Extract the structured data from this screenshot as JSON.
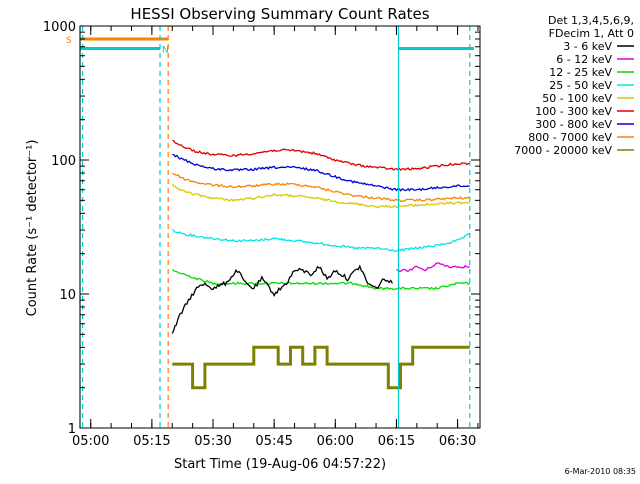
{
  "chart_data": {
    "type": "line",
    "title": "HESSI Observing Summary Count Rates",
    "xlabel": "Start Time (19-Aug-06 04:57:22)",
    "ylabel": "Count Rate (s⁻¹ detector⁻¹)",
    "xlim": [
      "04:57:22",
      "06:35:30"
    ],
    "ylim": [
      1,
      1000
    ],
    "yscale": "log",
    "x_ticks": [
      "05:00",
      "05:15",
      "05:30",
      "05:45",
      "06:00",
      "06:15",
      "06:30"
    ],
    "y_ticks": [
      "1",
      "10",
      "100",
      "1000"
    ],
    "grid": false,
    "legend_placement": "right",
    "legend_header": [
      "Det 1,3,4,5,6,9,",
      "FDecim 1, Att 0"
    ],
    "series": [
      {
        "name": "3 - 6 keV",
        "color": "#000000",
        "x": [
          "05:20",
          "05:21",
          "05:22",
          "05:24",
          "05:26",
          "05:28",
          "05:30",
          "05:33",
          "05:36",
          "05:38",
          "05:40",
          "05:42",
          "05:45",
          "05:48",
          "05:50",
          "05:52",
          "05:54",
          "05:56",
          "05:58",
          "06:00",
          "06:03",
          "06:06",
          "06:08",
          "06:10",
          "06:12",
          "06:14"
        ],
        "y": [
          5,
          6,
          7,
          9,
          11,
          12,
          11,
          12,
          15,
          12,
          11,
          13,
          10,
          12,
          15,
          15,
          14,
          16,
          13,
          15,
          13,
          16,
          12,
          11,
          13,
          12
        ]
      },
      {
        "name": "6 - 12 keV",
        "color": "#dd00dd",
        "x": [
          "06:15",
          "06:18",
          "06:20",
          "06:22",
          "06:25",
          "06:28",
          "06:30",
          "06:33"
        ],
        "y": [
          15,
          15,
          16,
          15,
          17,
          16,
          16,
          16
        ]
      },
      {
        "name": "12 - 25 keV",
        "color": "#00dd00",
        "x": [
          "05:20",
          "05:23",
          "05:26",
          "05:30",
          "05:35",
          "05:40",
          "05:45",
          "05:50",
          "05:55",
          "06:00",
          "06:05",
          "06:10",
          "06:15",
          "06:20",
          "06:25",
          "06:30",
          "06:33"
        ],
        "y": [
          15,
          14,
          13,
          12,
          12,
          12,
          12,
          12,
          12,
          12,
          12,
          11,
          11,
          11,
          11,
          12,
          12
        ]
      },
      {
        "name": "25 - 50 keV",
        "color": "#00e5e5",
        "x": [
          "05:20",
          "05:23",
          "05:26",
          "05:30",
          "05:35",
          "05:40",
          "05:45",
          "05:50",
          "05:55",
          "06:00",
          "06:05",
          "06:10",
          "06:15",
          "06:20",
          "06:25",
          "06:30",
          "06:33"
        ],
        "y": [
          30,
          28,
          27,
          26,
          25,
          25,
          26,
          25,
          24,
          23,
          22,
          22,
          21,
          22,
          23,
          25,
          28
        ]
      },
      {
        "name": "50 - 100 keV",
        "color": "#d8c800",
        "x": [
          "05:20",
          "05:23",
          "05:26",
          "05:30",
          "05:35",
          "05:40",
          "05:45",
          "05:50",
          "05:55",
          "06:00",
          "06:05",
          "06:10",
          "06:15",
          "06:20",
          "06:25",
          "06:30",
          "06:33"
        ],
        "y": [
          65,
          58,
          55,
          52,
          50,
          52,
          55,
          54,
          52,
          49,
          47,
          45,
          45,
          46,
          47,
          48,
          48
        ]
      },
      {
        "name": "100 - 300 keV",
        "color": "#dd0000",
        "x": [
          "05:20",
          "05:23",
          "05:26",
          "05:30",
          "05:35",
          "05:40",
          "05:45",
          "05:50",
          "05:55",
          "06:00",
          "06:05",
          "06:10",
          "06:15",
          "06:20",
          "06:25",
          "06:30",
          "06:33"
        ],
        "y": [
          140,
          125,
          115,
          110,
          108,
          112,
          118,
          118,
          112,
          100,
          92,
          88,
          85,
          86,
          90,
          94,
          94
        ]
      },
      {
        "name": "300 - 800 keV",
        "color": "#0000dd",
        "x": [
          "05:20",
          "05:23",
          "05:26",
          "05:30",
          "05:35",
          "05:40",
          "05:45",
          "05:50",
          "05:55",
          "06:00",
          "06:05",
          "06:10",
          "06:15",
          "06:20",
          "06:25",
          "06:30",
          "06:33"
        ],
        "y": [
          110,
          100,
          92,
          86,
          84,
          85,
          88,
          88,
          84,
          75,
          68,
          64,
          60,
          60,
          62,
          64,
          64
        ]
      },
      {
        "name": "800 - 7000 keV",
        "color": "#ff8000",
        "x": [
          "05:20",
          "05:23",
          "05:26",
          "05:30",
          "05:35",
          "05:40",
          "05:45",
          "05:50",
          "05:55",
          "06:00",
          "06:05",
          "06:10",
          "06:15",
          "06:20",
          "06:25",
          "06:30",
          "06:33"
        ],
        "y": [
          80,
          72,
          68,
          65,
          63,
          64,
          66,
          66,
          63,
          58,
          54,
          52,
          50,
          50,
          51,
          52,
          52
        ]
      },
      {
        "name": "7000 - 20000 keV",
        "color": "#808000",
        "x": [
          "05:20",
          "05:22",
          "05:25",
          "05:28",
          "05:30",
          "05:33",
          "05:36",
          "05:40",
          "05:43",
          "05:46",
          "05:49",
          "05:52",
          "05:55",
          "05:58",
          "06:01",
          "06:04",
          "06:07",
          "06:10",
          "06:13",
          "06:16",
          "06:19",
          "06:22",
          "06:25",
          "06:28",
          "06:31",
          "06:33"
        ],
        "y": [
          3,
          3,
          2,
          3,
          3,
          3,
          3,
          4,
          4,
          3,
          4,
          3,
          4,
          3,
          3,
          3,
          3,
          3,
          2,
          3,
          4,
          4,
          4,
          4,
          4,
          4
        ]
      }
    ],
    "time_markers": [
      {
        "time": "04:57:22",
        "color": "#00cccc",
        "style": "solid"
      },
      {
        "time": "04:58:00",
        "color": "#00cccc",
        "style": "dashed"
      },
      {
        "time": "05:17:00",
        "color": "#00cccc",
        "style": "dashed"
      },
      {
        "time": "05:19:00",
        "color": "#ff8000",
        "style": "dashed"
      },
      {
        "time": "06:15:30",
        "color": "#00cccc",
        "style": "solid"
      },
      {
        "time": "06:33:00",
        "color": "#00cccc",
        "style": "dashed"
      }
    ],
    "flag_bars": [
      {
        "label": "S",
        "color": "#ff8000",
        "start": "04:57:22",
        "end": "05:19:00",
        "y": 800
      },
      {
        "label": "N",
        "color": "#00cccc",
        "start": "04:57:22",
        "end": "05:17:00",
        "y": 680
      },
      {
        "label": "",
        "color": "#00cccc",
        "start": "06:15:30",
        "end": "06:34:00",
        "y": 680
      }
    ]
  },
  "footer": {
    "timestamp": "6-Mar-2010 08:35"
  }
}
